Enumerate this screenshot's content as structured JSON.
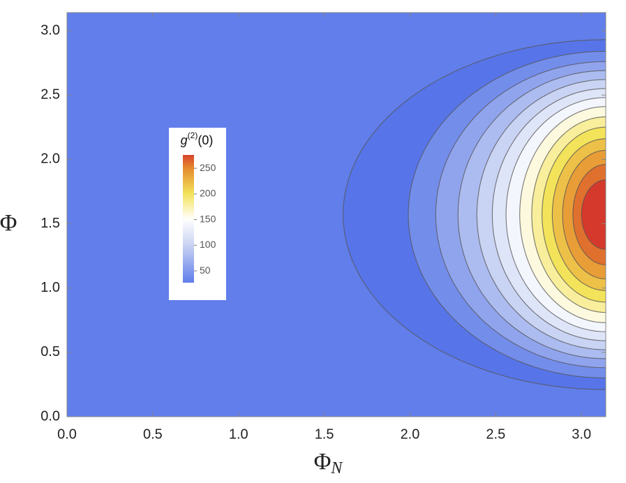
{
  "chart_data": {
    "type": "contour",
    "xlabel": "Φ",
    "xlabel_sub": "N",
    "ylabel": "Φ",
    "xlim": [
      0,
      3.14159
    ],
    "ylim": [
      0,
      3.14159
    ],
    "xticks": [
      {
        "value": 0,
        "label": "0.0"
      },
      {
        "value": 0.5,
        "label": "0.5"
      },
      {
        "value": 1,
        "label": "1.0"
      },
      {
        "value": 1.5,
        "label": "1.5"
      },
      {
        "value": 2,
        "label": "2.0"
      },
      {
        "value": 2.5,
        "label": "2.5"
      },
      {
        "value": 3,
        "label": "3.0"
      }
    ],
    "yticks": [
      {
        "value": 0,
        "label": "0.0"
      },
      {
        "value": 0.5,
        "label": "0.5"
      },
      {
        "value": 1,
        "label": "1.0"
      },
      {
        "value": 1.5,
        "label": "1.5"
      },
      {
        "value": 2,
        "label": "2.0"
      },
      {
        "value": 2.5,
        "label": "2.5"
      },
      {
        "value": 3,
        "label": "3.0"
      }
    ],
    "center": [
      3.14159,
      1.5708
    ],
    "contours": [
      {
        "level": 20,
        "xmin": 1.61,
        "halfwidth": 1.36
      },
      {
        "level": 40,
        "xmin": 1.99,
        "halfwidth": 1.27
      },
      {
        "level": 60,
        "xmin": 2.15,
        "halfwidth": 1.19
      },
      {
        "level": 80,
        "xmin": 2.28,
        "halfwidth": 1.12
      },
      {
        "level": 100,
        "xmin": 2.39,
        "halfwidth": 1.05
      },
      {
        "level": 120,
        "xmin": 2.48,
        "halfwidth": 0.98
      },
      {
        "level": 140,
        "xmin": 2.56,
        "halfwidth": 0.91
      },
      {
        "level": 160,
        "xmin": 2.64,
        "halfwidth": 0.84
      },
      {
        "level": 180,
        "xmin": 2.71,
        "halfwidth": 0.76
      },
      {
        "level": 200,
        "xmin": 2.77,
        "halfwidth": 0.68
      },
      {
        "level": 220,
        "xmin": 2.83,
        "halfwidth": 0.59
      },
      {
        "level": 240,
        "xmin": 2.89,
        "halfwidth": 0.5
      },
      {
        "level": 260,
        "xmin": 2.95,
        "halfwidth": 0.39
      },
      {
        "level": 280,
        "xmin": 3.0,
        "halfwidth": 0.27
      }
    ],
    "colormap": [
      [
        0,
        "#3a5ee6"
      ],
      [
        100,
        "#c9d3f3"
      ],
      [
        150,
        "#ffffff"
      ],
      [
        200,
        "#f3e35a"
      ],
      [
        250,
        "#e58c2e"
      ],
      [
        285,
        "#d22b2b"
      ]
    ],
    "colorbar": {
      "label": "g",
      "label_sup": "(2)",
      "label_rest": "(0)",
      "lim": [
        27,
        276
      ],
      "ticks": [
        50,
        100,
        150,
        200,
        250
      ]
    }
  }
}
